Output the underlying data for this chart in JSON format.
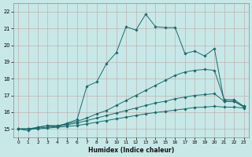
{
  "background_color": "#c8e8e8",
  "grid_color": "#b0c8c0",
  "line_color": "#1a6b6b",
  "xlabel": "Humidex (Indice chaleur)",
  "xlim": [
    -0.5,
    23.5
  ],
  "ylim": [
    14.5,
    22.5
  ],
  "yticks": [
    15,
    16,
    17,
    18,
    19,
    20,
    21,
    22
  ],
  "xticks": [
    0,
    1,
    2,
    3,
    4,
    5,
    6,
    7,
    8,
    9,
    10,
    11,
    12,
    13,
    14,
    15,
    16,
    17,
    18,
    19,
    20,
    21,
    22,
    23
  ],
  "lines": [
    {
      "x": [
        0,
        1,
        2,
        3,
        4,
        5,
        6,
        7,
        8,
        9,
        10,
        11,
        12,
        13,
        14,
        15,
        16,
        17,
        18,
        19,
        20,
        21,
        22,
        23
      ],
      "y": [
        15,
        14.9,
        15.1,
        15.2,
        15.15,
        15.35,
        15.55,
        17.55,
        17.8,
        18.9,
        19.55,
        21.1,
        20.9,
        21.85,
        21.1,
        21.05,
        21.05,
        19.5,
        19.65,
        19.35,
        19.8,
        16.65,
        16.65,
        16.3
      ]
    },
    {
      "x": [
        0,
        1,
        2,
        3,
        4,
        5,
        6,
        7,
        8,
        9,
        10,
        11,
        12,
        13,
        14,
        15,
        16,
        17,
        18,
        19,
        20,
        21,
        22,
        23
      ],
      "y": [
        15,
        15.0,
        15.1,
        15.2,
        15.2,
        15.3,
        15.45,
        15.65,
        15.9,
        16.1,
        16.4,
        16.7,
        17.0,
        17.3,
        17.6,
        17.9,
        18.2,
        18.4,
        18.5,
        18.55,
        18.5,
        16.75,
        16.75,
        16.35
      ]
    },
    {
      "x": [
        0,
        1,
        2,
        3,
        4,
        5,
        6,
        7,
        8,
        9,
        10,
        11,
        12,
        13,
        14,
        15,
        16,
        17,
        18,
        19,
        20,
        21,
        22,
        23
      ],
      "y": [
        15,
        15.0,
        15.05,
        15.1,
        15.15,
        15.25,
        15.35,
        15.5,
        15.65,
        15.8,
        15.95,
        16.1,
        16.25,
        16.4,
        16.55,
        16.65,
        16.8,
        16.9,
        17.0,
        17.05,
        17.1,
        16.65,
        16.65,
        16.35
      ]
    },
    {
      "x": [
        0,
        1,
        2,
        3,
        4,
        5,
        6,
        7,
        8,
        9,
        10,
        11,
        12,
        13,
        14,
        15,
        16,
        17,
        18,
        19,
        20,
        21,
        22,
        23
      ],
      "y": [
        15,
        15.0,
        15.0,
        15.05,
        15.1,
        15.15,
        15.2,
        15.3,
        15.4,
        15.5,
        15.6,
        15.7,
        15.8,
        15.9,
        15.98,
        16.05,
        16.12,
        16.2,
        16.28,
        16.3,
        16.35,
        16.3,
        16.3,
        16.25
      ]
    }
  ]
}
